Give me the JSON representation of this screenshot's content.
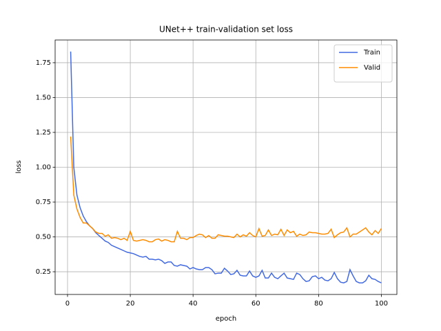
{
  "chart_data": {
    "type": "line",
    "title": "UNet++ train-validation set loss",
    "x_label": "epoch",
    "y_label": "loss",
    "x": [
      1,
      2,
      3,
      4,
      5,
      6,
      7,
      8,
      9,
      10,
      11,
      12,
      13,
      14,
      15,
      16,
      17,
      18,
      19,
      20,
      21,
      22,
      23,
      24,
      25,
      26,
      27,
      28,
      29,
      30,
      31,
      32,
      33,
      34,
      35,
      36,
      37,
      38,
      39,
      40,
      41,
      42,
      43,
      44,
      45,
      46,
      47,
      48,
      49,
      50,
      51,
      52,
      53,
      54,
      55,
      56,
      57,
      58,
      59,
      60,
      61,
      62,
      63,
      64,
      65,
      66,
      67,
      68,
      69,
      70,
      71,
      72,
      73,
      74,
      75,
      76,
      77,
      78,
      79,
      80,
      81,
      82,
      83,
      84,
      85,
      86,
      87,
      88,
      89,
      90,
      91,
      92,
      93,
      94,
      95,
      96,
      97,
      98,
      99,
      100
    ],
    "series": [
      {
        "name": "Train",
        "color": "#4169e1",
        "values": [
          1.83,
          1.0,
          0.8,
          0.71,
          0.65,
          0.61,
          0.58,
          0.56,
          0.53,
          0.51,
          0.49,
          0.47,
          0.46,
          0.44,
          0.43,
          0.42,
          0.41,
          0.4,
          0.39,
          0.385,
          0.38,
          0.37,
          0.36,
          0.355,
          0.36,
          0.34,
          0.34,
          0.335,
          0.34,
          0.33,
          0.31,
          0.32,
          0.32,
          0.295,
          0.29,
          0.3,
          0.295,
          0.29,
          0.27,
          0.28,
          0.27,
          0.265,
          0.265,
          0.28,
          0.28,
          0.265,
          0.235,
          0.24,
          0.24,
          0.275,
          0.255,
          0.23,
          0.235,
          0.26,
          0.225,
          0.22,
          0.22,
          0.255,
          0.22,
          0.21,
          0.22,
          0.26,
          0.205,
          0.205,
          0.24,
          0.21,
          0.2,
          0.22,
          0.24,
          0.205,
          0.2,
          0.195,
          0.24,
          0.23,
          0.2,
          0.18,
          0.185,
          0.215,
          0.22,
          0.2,
          0.21,
          0.19,
          0.185,
          0.2,
          0.245,
          0.2,
          0.175,
          0.17,
          0.18,
          0.265,
          0.22,
          0.18,
          0.17,
          0.17,
          0.185,
          0.225,
          0.2,
          0.195,
          0.18,
          0.17
        ]
      },
      {
        "name": "Valid",
        "color": "#ff8c00",
        "values": [
          1.22,
          0.8,
          0.7,
          0.64,
          0.6,
          0.6,
          0.58,
          0.56,
          0.535,
          0.525,
          0.525,
          0.505,
          0.515,
          0.49,
          0.495,
          0.49,
          0.48,
          0.49,
          0.475,
          0.54,
          0.475,
          0.47,
          0.475,
          0.48,
          0.475,
          0.465,
          0.465,
          0.48,
          0.485,
          0.47,
          0.48,
          0.475,
          0.465,
          0.465,
          0.54,
          0.49,
          0.49,
          0.48,
          0.495,
          0.495,
          0.51,
          0.52,
          0.515,
          0.495,
          0.51,
          0.49,
          0.49,
          0.515,
          0.51,
          0.505,
          0.505,
          0.5,
          0.495,
          0.52,
          0.5,
          0.515,
          0.505,
          0.53,
          0.51,
          0.5,
          0.56,
          0.505,
          0.51,
          0.55,
          0.51,
          0.52,
          0.515,
          0.555,
          0.51,
          0.55,
          0.53,
          0.54,
          0.505,
          0.52,
          0.51,
          0.515,
          0.535,
          0.53,
          0.53,
          0.525,
          0.52,
          0.52,
          0.525,
          0.555,
          0.495,
          0.515,
          0.53,
          0.535,
          0.565,
          0.5,
          0.52,
          0.52,
          0.535,
          0.55,
          0.565,
          0.535,
          0.515,
          0.545,
          0.525,
          0.56
        ]
      }
    ],
    "xlim": [
      -3.95,
      104.95
    ],
    "ylim": [
      0.087,
      1.913
    ],
    "xticks": [
      0,
      20,
      40,
      60,
      80,
      100
    ],
    "yticks": [
      0.25,
      {
        "value": 0.5,
        "label": "0.50"
      },
      0.75,
      {
        "value": 1.0,
        "label": "1.00"
      },
      1.25,
      {
        "value": 1.5,
        "label": "1.50"
      },
      1.75
    ],
    "grid": true,
    "legend": "upper right"
  }
}
